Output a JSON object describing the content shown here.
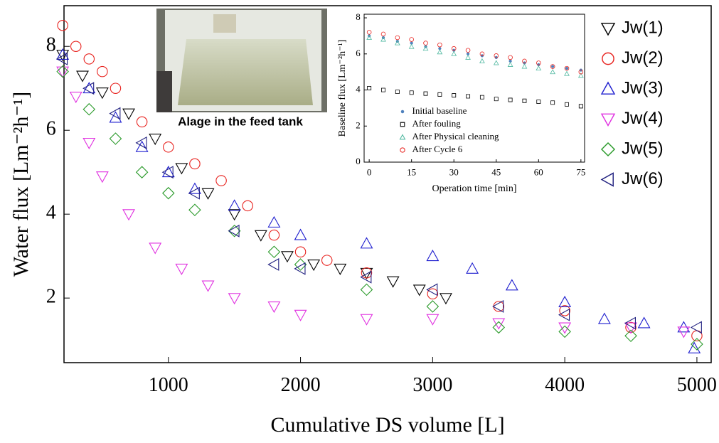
{
  "chart_data": [
    {
      "type": "scatter",
      "x_label": "Cumulative DS volume [L]",
      "y_label": "Water flux [Lm⁻²h⁻¹]",
      "annotations": [
        "Alage in the feed tank"
      ],
      "xlim": [
        210,
        5108
      ],
      "xticks": [
        1000,
        2000,
        3000,
        4000,
        5000
      ],
      "ylim": [
        0.46,
        8.97
      ],
      "yticks": [
        2,
        4,
        6,
        8
      ],
      "legend": "right",
      "grid": false,
      "series": [
        {
          "name": "Jw(1)",
          "color": "#000000",
          "marker": "triangle-down",
          "x": [
            200,
            350,
            500,
            700,
            900,
            1100,
            1300,
            1500,
            1700,
            1900,
            2100,
            2300,
            2500,
            2700,
            2900,
            3100
          ],
          "values": [
            7.8,
            7.3,
            6.9,
            6.4,
            5.8,
            5.1,
            4.5,
            4.0,
            3.5,
            3.0,
            2.8,
            2.7,
            2.6,
            2.4,
            2.2,
            2.0
          ]
        },
        {
          "name": "Jw(2)",
          "color": "#e8231f",
          "marker": "circle",
          "x": [
            200,
            300,
            400,
            500,
            600,
            800,
            1000,
            1200,
            1400,
            1600,
            1800,
            2000,
            2200,
            2500,
            3000,
            3500,
            4000,
            4500,
            5000
          ],
          "values": [
            8.5,
            8.0,
            7.7,
            7.4,
            7.0,
            6.2,
            5.6,
            5.2,
            4.8,
            4.2,
            3.5,
            3.1,
            2.9,
            2.6,
            2.1,
            1.8,
            1.7,
            1.3,
            1.1
          ]
        },
        {
          "name": "Jw(3)",
          "color": "#1f1fcf",
          "marker": "triangle-up",
          "x": [
            200,
            400,
            600,
            800,
            1000,
            1200,
            1500,
            1800,
            2000,
            2500,
            3000,
            3300,
            3600,
            4000,
            4300,
            4600,
            4900,
            4980
          ],
          "values": [
            7.8,
            7.0,
            6.3,
            5.6,
            5.0,
            4.6,
            4.2,
            3.8,
            3.5,
            3.3,
            3.0,
            2.7,
            2.3,
            1.9,
            1.5,
            1.4,
            1.3,
            0.8
          ]
        },
        {
          "name": "Jw(4)",
          "color": "#e030e0",
          "marker": "triangle-down",
          "x": [
            200,
            300,
            400,
            500,
            700,
            900,
            1100,
            1300,
            1500,
            1800,
            2000,
            2500,
            3000,
            3500,
            4000,
            4500,
            4900
          ],
          "values": [
            7.4,
            6.8,
            5.7,
            4.9,
            4.0,
            3.2,
            2.7,
            2.3,
            2.0,
            1.8,
            1.6,
            1.5,
            1.5,
            1.4,
            1.3,
            1.3,
            1.2
          ]
        },
        {
          "name": "Jw(5)",
          "color": "#2a9a2a",
          "marker": "diamond",
          "x": [
            200,
            400,
            600,
            800,
            1000,
            1200,
            1500,
            1800,
            2000,
            2500,
            3000,
            3500,
            4000,
            4500,
            5000
          ],
          "values": [
            7.4,
            6.5,
            5.8,
            5.0,
            4.5,
            4.1,
            3.6,
            3.1,
            2.8,
            2.2,
            1.8,
            1.3,
            1.2,
            1.1,
            0.9
          ]
        },
        {
          "name": "Jw(6)",
          "color": "#1f1f7f",
          "marker": "triangle-left",
          "x": [
            200,
            400,
            600,
            800,
            1000,
            1200,
            1500,
            1800,
            2000,
            2500,
            3000,
            3500,
            4000,
            4500,
            5000
          ],
          "values": [
            7.7,
            7.0,
            6.4,
            5.7,
            5.0,
            4.5,
            3.6,
            2.8,
            2.7,
            2.5,
            2.2,
            1.8,
            1.6,
            1.4,
            1.3
          ]
        }
      ]
    },
    {
      "type": "scatter",
      "x_label": "Operation time [min]",
      "y_label": "Baseline flux [Lm⁻²h⁻¹]",
      "xlim": [
        -1.8,
        76.3
      ],
      "xticks": [
        0,
        15,
        30,
        45,
        60,
        75
      ],
      "ylim": [
        0,
        8.2
      ],
      "yticks": [
        0,
        2,
        4,
        6,
        8
      ],
      "legend": "lower left",
      "grid": false,
      "series": [
        {
          "name": "Initial baseline",
          "color": "#4f81bd",
          "marker": "dot",
          "x": [
            0,
            5,
            10,
            15,
            20,
            25,
            30,
            35,
            40,
            45,
            50,
            55,
            60,
            65,
            70,
            75
          ],
          "values": [
            7.0,
            6.9,
            6.7,
            6.6,
            6.4,
            6.3,
            6.2,
            6.0,
            5.9,
            5.8,
            5.6,
            5.5,
            5.4,
            5.3,
            5.2,
            5.1
          ]
        },
        {
          "name": "After fouling",
          "color": "#000000",
          "marker": "square",
          "x": [
            0,
            5,
            10,
            15,
            20,
            25,
            30,
            35,
            40,
            45,
            50,
            55,
            60,
            65,
            70,
            75
          ],
          "values": [
            4.1,
            4.0,
            3.9,
            3.85,
            3.8,
            3.75,
            3.7,
            3.65,
            3.6,
            3.5,
            3.45,
            3.4,
            3.35,
            3.3,
            3.2,
            3.1
          ]
        },
        {
          "name": "After Physical cleaning",
          "color": "#4fb8a0",
          "marker": "triangle-up",
          "x": [
            0,
            5,
            10,
            15,
            20,
            25,
            30,
            35,
            40,
            45,
            50,
            55,
            60,
            65,
            70,
            75
          ],
          "values": [
            6.9,
            6.8,
            6.6,
            6.4,
            6.3,
            6.1,
            6.0,
            5.8,
            5.6,
            5.5,
            5.4,
            5.3,
            5.2,
            5.0,
            4.9,
            4.8
          ]
        },
        {
          "name": "After Cycle 6",
          "color": "#e8231f",
          "marker": "circle",
          "x": [
            0,
            5,
            10,
            15,
            20,
            25,
            30,
            35,
            40,
            45,
            50,
            55,
            60,
            65,
            70,
            75
          ],
          "values": [
            7.2,
            7.1,
            6.9,
            6.8,
            6.6,
            6.5,
            6.3,
            6.2,
            6.0,
            5.9,
            5.8,
            5.6,
            5.5,
            5.3,
            5.2,
            5.0
          ]
        }
      ]
    }
  ]
}
